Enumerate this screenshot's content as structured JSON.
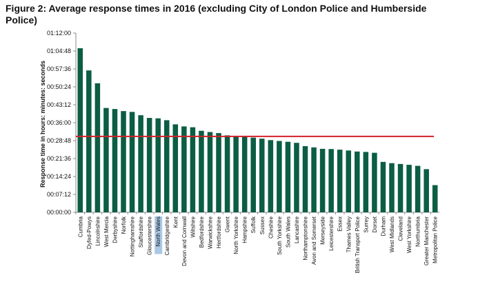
{
  "title": "Figure 2: Average response times in 2016 (excluding City of London Police and Humberside Police)",
  "chart_data": {
    "type": "bar",
    "title": "Figure 2: Average response times in 2016 (excluding City of London Police and Humberside Police)",
    "xlabel": "",
    "ylabel": "Response time in hours: minutes: seconds",
    "y_unit": "seconds",
    "ylim": [
      0,
      4320
    ],
    "y_ticks": [
      "00:00:00",
      "00:07:12",
      "00:14:24",
      "00:21:36",
      "00:28:48",
      "00:36:00",
      "00:43:12",
      "00:50:24",
      "00:57:36",
      "01:04:48",
      "01:12:00"
    ],
    "y_tick_values": [
      0,
      432,
      864,
      1296,
      1728,
      2160,
      2592,
      3024,
      3456,
      3888,
      4320
    ],
    "grid": false,
    "legend": "none",
    "bar_color": "#0b5d44",
    "average_line_color": "#d0202b",
    "average_value": 1830,
    "highlight_category": "North Wales",
    "highlight_color": "#a9c8e6",
    "categories": [
      "Cumbria",
      "Dyfed-Powys",
      "Lincolnshire",
      "West Mercia",
      "Derbyshire",
      "Norfolk",
      "Nottinghamshire",
      "Staffordshire",
      "Gloucestershire",
      "North Wales",
      "Cambridgeshire",
      "Kent",
      "Devon and Cornwall",
      "Wiltshire",
      "Bedfordshire",
      "Warwickshire",
      "Hertfordshire",
      "Gwent",
      "North Yorkshire",
      "Hampshire",
      "Suffolk",
      "Sussex",
      "Cheshire",
      "South Yorkshire",
      "South Wales",
      "Lancashire",
      "Northamptonshire",
      "Avon and Somerset",
      "Merseyside",
      "Leicestershire",
      "Essex",
      "Thames Valley",
      "British Transport Police",
      "Surrey",
      "Dorset",
      "Durham",
      "West Midlands",
      "Cleveland",
      "West Yorkshire",
      "Northumbria",
      "Greater Manchester",
      "Metropolitan Police"
    ],
    "values": [
      3955,
      3420,
      3110,
      2515,
      2490,
      2440,
      2420,
      2340,
      2275,
      2265,
      2220,
      2120,
      2070,
      2050,
      1965,
      1935,
      1910,
      1855,
      1830,
      1825,
      1800,
      1775,
      1740,
      1720,
      1700,
      1675,
      1595,
      1565,
      1530,
      1525,
      1510,
      1490,
      1465,
      1455,
      1435,
      1215,
      1185,
      1165,
      1145,
      1120,
      1040,
      655
    ]
  }
}
